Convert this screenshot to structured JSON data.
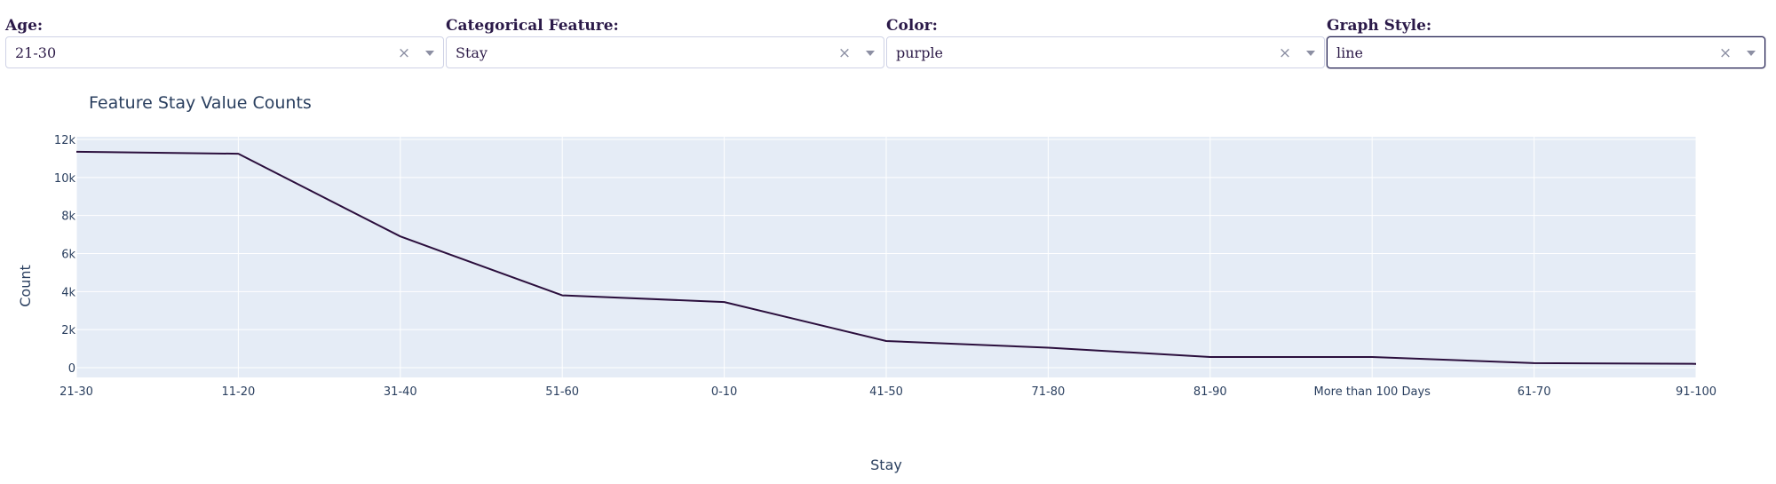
{
  "controls": {
    "age": {
      "label": "Age:",
      "value": "21-30"
    },
    "feature": {
      "label": "Categorical Feature:",
      "value": "Stay"
    },
    "color": {
      "label": "Color:",
      "value": "purple"
    },
    "style": {
      "label": "Graph Style:",
      "value": "line"
    }
  },
  "icons": {
    "clear": "close-icon",
    "dropdown": "chevron-down-icon"
  },
  "colors": {
    "line": "#2b0f3d",
    "plot_bg": "#e5ecf6",
    "grid": "#ffffff",
    "text": "#2a3f5f"
  },
  "chart_data": {
    "type": "line",
    "title": "Feature Stay Value Counts",
    "xlabel": "Stay",
    "ylabel": "Count",
    "categories": [
      "21-30",
      "11-20",
      "31-40",
      "51-60",
      "0-10",
      "41-50",
      "71-80",
      "81-90",
      "More than 100 Days",
      "61-70",
      "91-100"
    ],
    "values": [
      11350,
      11250,
      6900,
      3800,
      3450,
      1400,
      1050,
      560,
      560,
      240,
      200
    ],
    "ylim": [
      0,
      12000
    ],
    "yticks": [
      0,
      2000,
      4000,
      6000,
      8000,
      10000,
      12000
    ],
    "ytick_labels": [
      "0",
      "2k",
      "4k",
      "6k",
      "8k",
      "10k",
      "12k"
    ],
    "grid": true,
    "legend": "none"
  }
}
